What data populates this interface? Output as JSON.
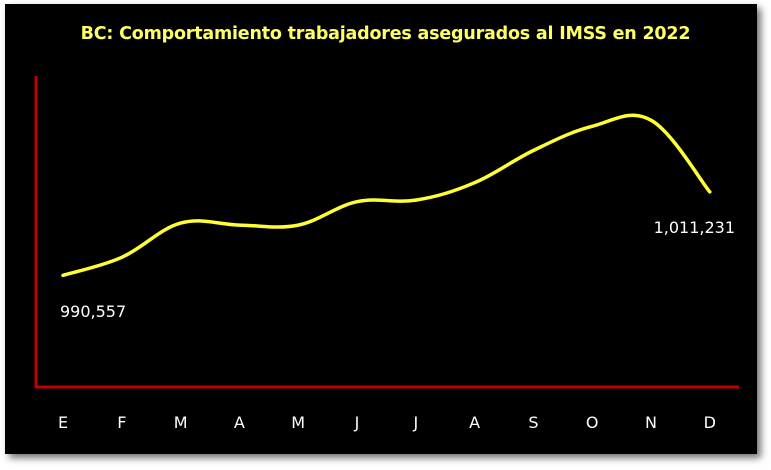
{
  "chart_data": {
    "type": "line",
    "title": "BC: Comportamiento trabajadores asegurados al IMSS  en 2022",
    "xlabel": "",
    "ylabel": "",
    "categories": [
      "E",
      "F",
      "M",
      "A",
      "M",
      "J",
      "J",
      "A",
      "S",
      "O",
      "N",
      "D"
    ],
    "series": [
      {
        "values": [
          990557,
          995000,
          1003500,
          1003000,
          1003000,
          1008800,
          1009200,
          1013500,
          1021500,
          1027500,
          1029000,
          1011231
        ]
      }
    ],
    "ylim": [
      975000,
      1036000
    ],
    "grid": false,
    "legend": "none",
    "data_labels": [
      {
        "index": 0,
        "text": "990,557"
      },
      {
        "index": 11,
        "text": "1,011,231"
      }
    ],
    "colors": {
      "background": "#000000",
      "line": "#ffff33",
      "axis": "#c00000",
      "title": "#ffff66",
      "text": "#ffffff"
    }
  }
}
